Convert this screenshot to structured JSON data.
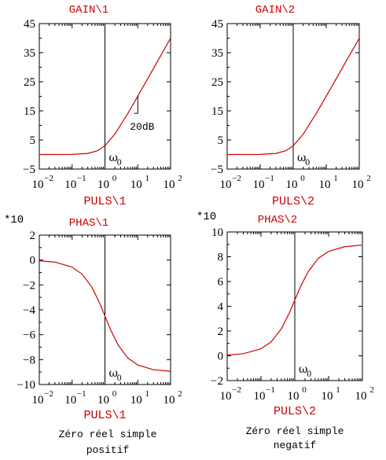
{
  "colors": {
    "curve": "#cc0000",
    "axis": "#000000",
    "title": "#cc0000"
  },
  "chart_data": [
    {
      "type": "line",
      "title": "GAIN\\1",
      "xlabel": "PULS\\1",
      "xscale": "log",
      "xlim": [
        0.01,
        100
      ],
      "ylim": [
        -5,
        45
      ],
      "yticks": [
        "45",
        "35",
        "25",
        "15",
        "5",
        "−5"
      ],
      "yticks_values": [
        45,
        35,
        25,
        15,
        5,
        -5
      ],
      "xticks": [
        {
          "base": "10",
          "exp": "−2"
        },
        {
          "base": "10",
          "exp": "−1"
        },
        {
          "base": "10",
          "exp": "0"
        },
        {
          "base": "10",
          "exp": "1"
        },
        {
          "base": "10",
          "exp": "2"
        }
      ],
      "series": [
        {
          "x": [
            0.01,
            0.1,
            0.3,
            0.6,
            1,
            2,
            5,
            10,
            20,
            50,
            100
          ],
          "y": [
            0,
            0.04,
            0.37,
            1.34,
            3.01,
            6.99,
            14.15,
            20.04,
            26.03,
            33.98,
            40.0
          ]
        }
      ],
      "marker_x": 1,
      "marker_label": {
        "sym": "ω",
        "sub": "0"
      },
      "slope_label": "20dB",
      "multiplier": ""
    },
    {
      "type": "line",
      "title": "GAIN\\2",
      "xlabel": "PULS\\2",
      "xscale": "log",
      "xlim": [
        0.01,
        100
      ],
      "ylim": [
        -5,
        45
      ],
      "yticks": [
        "45",
        "35",
        "25",
        "15",
        "5",
        "−5"
      ],
      "yticks_values": [
        45,
        35,
        25,
        15,
        5,
        -5
      ],
      "xticks": [
        {
          "base": "10",
          "exp": "−2"
        },
        {
          "base": "10",
          "exp": "−1"
        },
        {
          "base": "10",
          "exp": "0"
        },
        {
          "base": "10",
          "exp": "1"
        },
        {
          "base": "10",
          "exp": "2"
        }
      ],
      "series": [
        {
          "x": [
            0.01,
            0.1,
            0.3,
            0.6,
            1,
            2,
            5,
            10,
            20,
            50,
            100
          ],
          "y": [
            0,
            0.04,
            0.37,
            1.34,
            3.01,
            6.99,
            14.15,
            20.04,
            26.03,
            33.98,
            40.0
          ]
        }
      ],
      "marker_x": 1,
      "marker_label": {
        "sym": "ω",
        "sub": "0"
      },
      "slope_label": "",
      "multiplier": ""
    },
    {
      "type": "line",
      "title": "PHAS\\1",
      "xlabel": "PULS\\1",
      "xscale": "log",
      "xlim": [
        0.01,
        100
      ],
      "ylim": [
        -10,
        2
      ],
      "yticks": [
        "2",
        "0",
        "−2",
        "−4",
        "−6",
        "−8",
        "−10"
      ],
      "yticks_values": [
        2,
        0,
        -2,
        -4,
        -6,
        -8,
        -10
      ],
      "xticks": [
        {
          "base": "10",
          "exp": "−2"
        },
        {
          "base": "10",
          "exp": "−1"
        },
        {
          "base": "10",
          "exp": "0"
        },
        {
          "base": "10",
          "exp": "1"
        },
        {
          "base": "10",
          "exp": "2"
        }
      ],
      "series": [
        {
          "x": [
            0.01,
            0.03,
            0.1,
            0.2,
            0.4,
            0.7,
            1,
            1.5,
            2.5,
            5,
            10,
            30,
            100
          ],
          "y": [
            -0.06,
            -0.17,
            -0.57,
            -1.13,
            -2.18,
            -3.5,
            -4.5,
            -5.63,
            -6.81,
            -7.88,
            -8.43,
            -8.81,
            -8.94
          ]
        }
      ],
      "marker_x": 1,
      "marker_label": {
        "sym": "ω",
        "sub": "0"
      },
      "slope_label": "",
      "multiplier": "*10",
      "caption": [
        "Zéro réel simple",
        "positif"
      ]
    },
    {
      "type": "line",
      "title": "PHAS\\2",
      "xlabel": "PULS\\2",
      "xscale": "log",
      "xlim": [
        0.01,
        100
      ],
      "ylim": [
        -2,
        10
      ],
      "yticks": [
        "10",
        "8",
        "6",
        "4",
        "2",
        "0",
        "−2"
      ],
      "yticks_values": [
        10,
        8,
        6,
        4,
        2,
        0,
        -2
      ],
      "xticks": [
        {
          "base": "10",
          "exp": "−2"
        },
        {
          "base": "10",
          "exp": "−1"
        },
        {
          "base": "10",
          "exp": "0"
        },
        {
          "base": "10",
          "exp": "1"
        },
        {
          "base": "10",
          "exp": "2"
        }
      ],
      "series": [
        {
          "x": [
            0.01,
            0.03,
            0.1,
            0.2,
            0.4,
            0.7,
            1,
            1.5,
            2.5,
            5,
            10,
            30,
            100
          ],
          "y": [
            0.06,
            0.17,
            0.57,
            1.13,
            2.18,
            3.5,
            4.5,
            5.63,
            6.81,
            7.88,
            8.43,
            8.81,
            8.94
          ]
        }
      ],
      "marker_x": 1,
      "marker_label": {
        "sym": "ω",
        "sub": "0"
      },
      "slope_label": "",
      "multiplier": "*10",
      "caption": [
        "Zéro réel simple",
        "negatif"
      ]
    }
  ]
}
